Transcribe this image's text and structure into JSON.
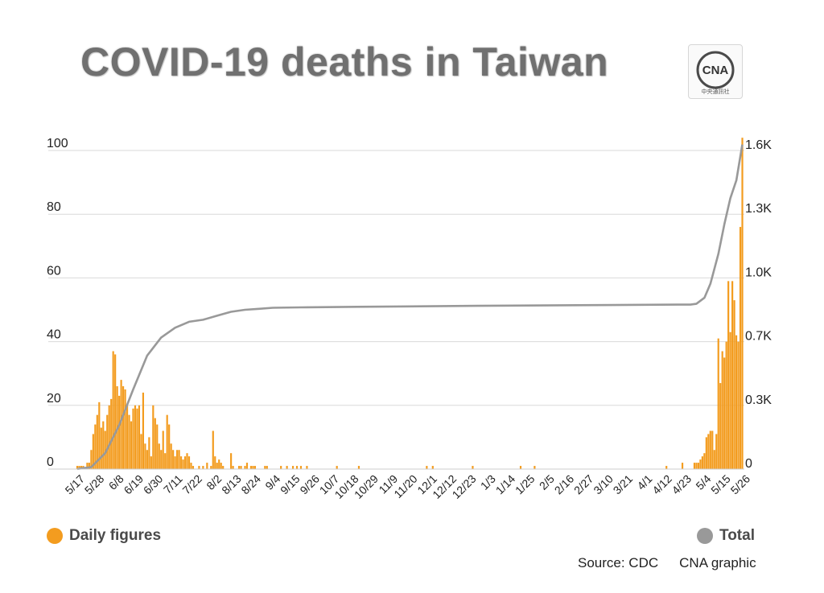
{
  "title": "COVID-19 deaths in Taiwan",
  "logo": {
    "main": "CNA",
    "sub": "中央通訊社",
    "icon": "cna-logo"
  },
  "colors": {
    "daily": "#F39C1F",
    "total": "#999999",
    "grid": "#d9d9d9"
  },
  "chart_data": {
    "type": "bar",
    "title": "COVID-19 deaths in Taiwan",
    "xlabel": "",
    "ylabel": "",
    "grid": true,
    "legend_placement": "bottom",
    "left_axis": {
      "ylim": [
        0,
        100
      ],
      "ticks": [
        "0",
        "20",
        "40",
        "60",
        "80",
        "100"
      ]
    },
    "right_axis": {
      "ylim": [
        0,
        1600
      ],
      "ticks": [
        "0",
        "0.3K",
        "0.7K",
        "1.0K",
        "1.3K",
        "1.6K"
      ]
    },
    "x_tick_labels": [
      "5/17",
      "5/28",
      "6/8",
      "6/19",
      "6/30",
      "7/11",
      "7/22",
      "8/2",
      "8/13",
      "8/24",
      "9/4",
      "9/15",
      "9/26",
      "10/7",
      "10/18",
      "10/29",
      "11/9",
      "11/20",
      "12/1",
      "12/12",
      "12/23",
      "1/3",
      "1/14",
      "1/25",
      "2/5",
      "2/16",
      "2/27",
      "3/10",
      "3/21",
      "4/1",
      "4/12",
      "4/23",
      "5/4",
      "5/15",
      "5/26"
    ],
    "series": [
      {
        "name": "Daily figures",
        "type": "bar",
        "axis": "left",
        "color": "#F39C1F",
        "data": [
          [
            0,
            1
          ],
          [
            1,
            1
          ],
          [
            2,
            1
          ],
          [
            3,
            1
          ],
          [
            4,
            0
          ],
          [
            5,
            2
          ],
          [
            6,
            2
          ],
          [
            7,
            6
          ],
          [
            8,
            11
          ],
          [
            9,
            14
          ],
          [
            10,
            17
          ],
          [
            11,
            21
          ],
          [
            12,
            13
          ],
          [
            13,
            15
          ],
          [
            14,
            12
          ],
          [
            15,
            17
          ],
          [
            16,
            20
          ],
          [
            17,
            22
          ],
          [
            18,
            37
          ],
          [
            19,
            36
          ],
          [
            20,
            26
          ],
          [
            21,
            23
          ],
          [
            22,
            28
          ],
          [
            23,
            26
          ],
          [
            24,
            25
          ],
          [
            25,
            20
          ],
          [
            26,
            17
          ],
          [
            27,
            15
          ],
          [
            28,
            19
          ],
          [
            29,
            20
          ],
          [
            30,
            19
          ],
          [
            31,
            20
          ],
          [
            32,
            11
          ],
          [
            33,
            24
          ],
          [
            34,
            8
          ],
          [
            35,
            6
          ],
          [
            36,
            10
          ],
          [
            37,
            4
          ],
          [
            38,
            20
          ],
          [
            39,
            16
          ],
          [
            40,
            14
          ],
          [
            41,
            8
          ],
          [
            42,
            6
          ],
          [
            43,
            12
          ],
          [
            44,
            5
          ],
          [
            45,
            17
          ],
          [
            46,
            14
          ],
          [
            47,
            8
          ],
          [
            48,
            6
          ],
          [
            49,
            4
          ],
          [
            50,
            6
          ],
          [
            51,
            6
          ],
          [
            52,
            4
          ],
          [
            53,
            3
          ],
          [
            54,
            4
          ],
          [
            55,
            5
          ],
          [
            56,
            4
          ],
          [
            57,
            2
          ],
          [
            58,
            1
          ],
          [
            61,
            1
          ],
          [
            63,
            1
          ],
          [
            65,
            2
          ],
          [
            67,
            1
          ],
          [
            68,
            12
          ],
          [
            69,
            4
          ],
          [
            70,
            2
          ],
          [
            71,
            3
          ],
          [
            72,
            2
          ],
          [
            73,
            1
          ],
          [
            77,
            5
          ],
          [
            78,
            1
          ],
          [
            81,
            1
          ],
          [
            82,
            1
          ],
          [
            84,
            1
          ],
          [
            85,
            2
          ],
          [
            87,
            1
          ],
          [
            88,
            1
          ],
          [
            89,
            1
          ],
          [
            94,
            1
          ],
          [
            95,
            1
          ],
          [
            102,
            1
          ],
          [
            105,
            1
          ],
          [
            108,
            1
          ],
          [
            110,
            1
          ],
          [
            112,
            1
          ],
          [
            115,
            1
          ],
          [
            130,
            1
          ],
          [
            141,
            1
          ],
          [
            175,
            1
          ],
          [
            178,
            1
          ],
          [
            198,
            1
          ],
          [
            222,
            1
          ],
          [
            229,
            1
          ],
          [
            295,
            1
          ],
          [
            303,
            2
          ],
          [
            309,
            2
          ],
          [
            310,
            2
          ],
          [
            311,
            2
          ],
          [
            312,
            3
          ],
          [
            313,
            4
          ],
          [
            314,
            5
          ],
          [
            315,
            10
          ],
          [
            316,
            11
          ],
          [
            317,
            12
          ],
          [
            318,
            12
          ],
          [
            319,
            6
          ],
          [
            320,
            11
          ],
          [
            321,
            41
          ],
          [
            322,
            27
          ],
          [
            323,
            37
          ],
          [
            324,
            35
          ],
          [
            325,
            40
          ],
          [
            326,
            59
          ],
          [
            327,
            43
          ],
          [
            328,
            59
          ],
          [
            329,
            53
          ],
          [
            330,
            42
          ],
          [
            331,
            40
          ],
          [
            332,
            76
          ],
          [
            333,
            104
          ]
        ]
      },
      {
        "name": "Total",
        "type": "line",
        "axis": "right",
        "color": "#999999",
        "data": [
          [
            0,
            1
          ],
          [
            7,
            10
          ],
          [
            14,
            80
          ],
          [
            21,
            220
          ],
          [
            28,
            400
          ],
          [
            35,
            570
          ],
          [
            42,
            660
          ],
          [
            49,
            710
          ],
          [
            56,
            740
          ],
          [
            63,
            750
          ],
          [
            70,
            770
          ],
          [
            77,
            790
          ],
          [
            84,
            800
          ],
          [
            91,
            805
          ],
          [
            98,
            810
          ],
          [
            112,
            812
          ],
          [
            140,
            815
          ],
          [
            200,
            820
          ],
          [
            250,
            823
          ],
          [
            300,
            826
          ],
          [
            307,
            826
          ],
          [
            310,
            830
          ],
          [
            314,
            860
          ],
          [
            317,
            930
          ],
          [
            321,
            1080
          ],
          [
            324,
            1230
          ],
          [
            327,
            1360
          ],
          [
            330,
            1450
          ],
          [
            333,
            1630
          ]
        ]
      }
    ]
  },
  "legend": {
    "daily": "Daily figures",
    "total": "Total"
  },
  "footer": {
    "source": "Source: CDC",
    "credit": "CNA graphic"
  }
}
